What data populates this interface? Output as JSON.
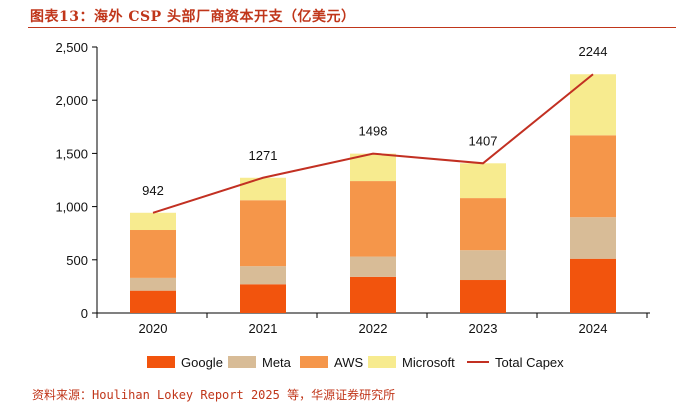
{
  "header": {
    "title": "图表13：海外 CSP 头部厂商资本开支（亿美元）"
  },
  "footer": {
    "source": "资料来源：Houlihan Lokey Report 2025 等，华源证券研究所"
  },
  "colors": {
    "title": "#c0361a",
    "Google": "#f2540d",
    "Meta": "#d8bc97",
    "AWS": "#f5964a",
    "Microsoft": "#f7eb8f",
    "Total Capex": "#c23022"
  },
  "chart_data": {
    "type": "bar",
    "stacked": true,
    "categories": [
      "2020",
      "2021",
      "2022",
      "2023",
      "2024"
    ],
    "series": [
      {
        "name": "Google",
        "values": [
          210,
          270,
          340,
          310,
          510
        ]
      },
      {
        "name": "Meta",
        "values": [
          120,
          170,
          190,
          280,
          390
        ]
      },
      {
        "name": "AWS",
        "values": [
          450,
          620,
          710,
          490,
          770
        ]
      },
      {
        "name": "Microsoft",
        "values": [
          162,
          211,
          258,
          327,
          574
        ]
      }
    ],
    "line": {
      "name": "Total Capex",
      "values": [
        942,
        1271,
        1498,
        1407,
        2244
      ]
    },
    "data_labels": [
      "942",
      "1271",
      "1498",
      "1407",
      "2244"
    ],
    "y_ticks": [
      0,
      500,
      1000,
      1500,
      2000,
      2500
    ],
    "y_tick_labels": [
      "0",
      "500",
      "1,000",
      "1,500",
      "2,000",
      "2,500"
    ],
    "ylim": [
      0,
      2500
    ],
    "legend_position": "bottom",
    "legend": [
      "Google",
      "Meta",
      "AWS",
      "Microsoft",
      "Total Capex"
    ]
  }
}
